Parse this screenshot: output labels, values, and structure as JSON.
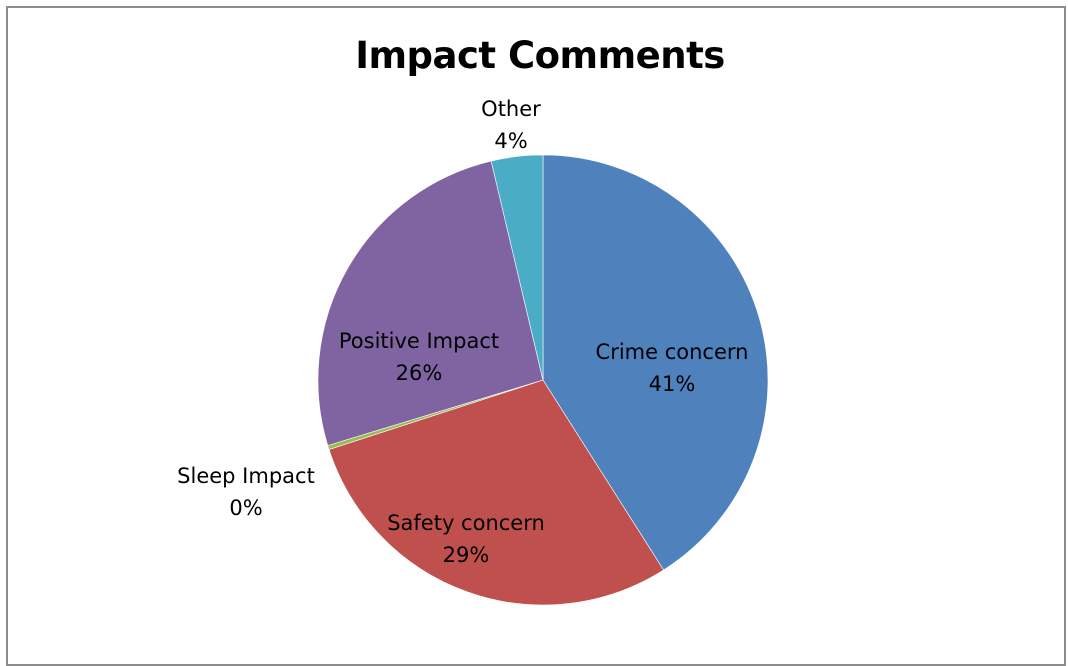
{
  "chart_data": {
    "type": "pie",
    "title": "Impact Comments",
    "slices": [
      {
        "label": "Crime concern",
        "percent_label": "41%",
        "value": 41,
        "color": "#4f81bd",
        "label_color": "#000000"
      },
      {
        "label": "Safety concern",
        "percent_label": "29%",
        "value": 29,
        "color": "#c0504d",
        "label_color": "#000000"
      },
      {
        "label": "Sleep Impact",
        "percent_label": "0%",
        "value": 0.3,
        "color": "#9bbb59",
        "label_color": "#000000"
      },
      {
        "label": "Positive Impact",
        "percent_label": "26%",
        "value": 26,
        "color": "#8064a2",
        "label_color": "#000000"
      },
      {
        "label": "Other",
        "percent_label": "4%",
        "value": 3.7,
        "color": "#4bacc6",
        "label_color": "#000000"
      }
    ],
    "start_angle_deg": 0,
    "direction": "clockwise",
    "legend": "none"
  }
}
